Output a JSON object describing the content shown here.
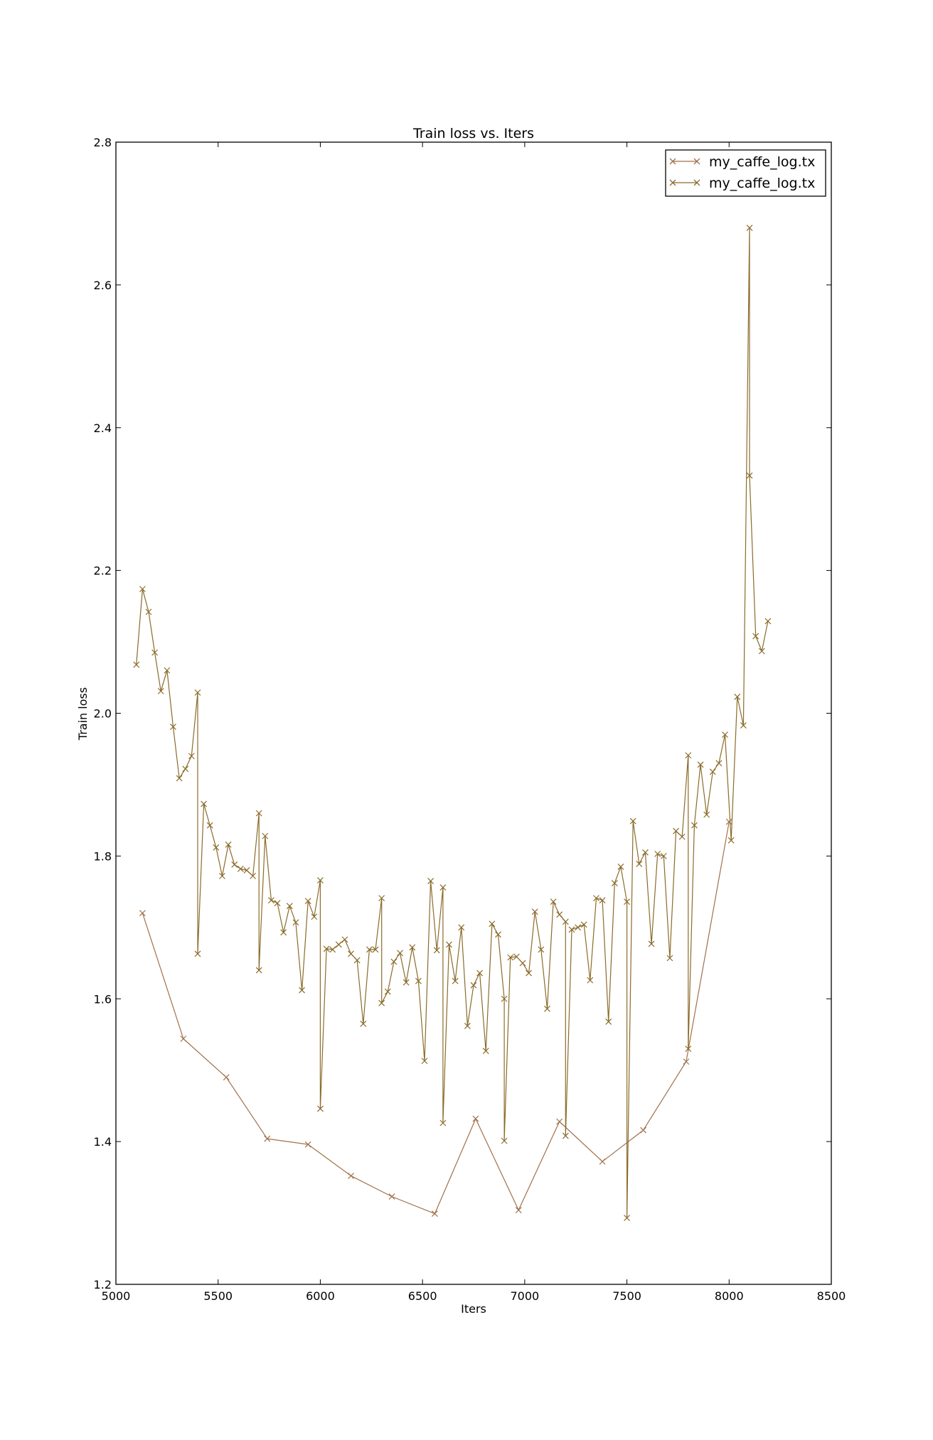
{
  "chart_data": {
    "type": "line",
    "title": "Train loss  vs. Iters",
    "xlabel": "Iters",
    "ylabel": "Train loss",
    "xlim": [
      5000,
      8500
    ],
    "ylim": [
      1.2,
      2.8
    ],
    "x_ticks": [
      5000,
      5500,
      6000,
      6500,
      7000,
      7500,
      8000,
      8500
    ],
    "x_tick_labels": [
      "5000",
      "5500",
      "6000",
      "6500",
      "7000",
      "7500",
      "8000",
      "8500"
    ],
    "y_ticks": [
      1.2,
      1.4,
      1.6,
      1.8,
      2.0,
      2.2,
      2.4,
      2.6,
      2.8
    ],
    "y_tick_labels": [
      "1.2",
      "1.4",
      "1.6",
      "1.8",
      "2.0",
      "2.2",
      "2.4",
      "2.6",
      "2.8"
    ],
    "grid": false,
    "legend_position": "top-right",
    "marker": "x",
    "series": [
      {
        "name": "my_caffe_log.tx",
        "color": "#a0714b",
        "x": [
          5130,
          5330,
          5540,
          5740,
          5940,
          6150,
          6350,
          6560,
          6760,
          6970,
          7170,
          7380,
          7580,
          7790,
          8000
        ],
        "y": [
          1.72,
          1.544,
          1.49,
          1.404,
          1.396,
          1.352,
          1.323,
          1.299,
          1.432,
          1.304,
          1.428,
          1.372,
          1.416,
          1.512,
          1.848
        ]
      },
      {
        "name": "my_caffe_log.tx",
        "color": "#8b6b2a",
        "x": [
          5100,
          5130,
          5160,
          5190,
          5220,
          5250,
          5280,
          5310,
          5340,
          5370,
          5400,
          5400,
          5430,
          5460,
          5490,
          5520,
          5550,
          5580,
          5610,
          5640,
          5670,
          5700,
          5700,
          5730,
          5760,
          5790,
          5820,
          5850,
          5880,
          5910,
          5940,
          5970,
          6000,
          6000,
          6030,
          6060,
          6090,
          6120,
          6150,
          6180,
          6210,
          6240,
          6270,
          6300,
          6300,
          6330,
          6360,
          6390,
          6420,
          6450,
          6480,
          6510,
          6540,
          6570,
          6600,
          6600,
          6630,
          6660,
          6690,
          6720,
          6750,
          6780,
          6810,
          6840,
          6870,
          6900,
          6900,
          6930,
          6960,
          6990,
          7020,
          7050,
          7080,
          7110,
          7140,
          7170,
          7200,
          7200,
          7230,
          7260,
          7290,
          7320,
          7350,
          7380,
          7410,
          7440,
          7470,
          7500,
          7500,
          7530,
          7560,
          7590,
          7620,
          7650,
          7680,
          7710,
          7740,
          7770,
          7800,
          7800,
          7830,
          7860,
          7890,
          7920,
          7950,
          7980,
          8010,
          8040,
          8070,
          8100,
          8100,
          8130,
          8160,
          8190
        ],
        "y": [
          2.068,
          2.174,
          2.142,
          2.085,
          2.031,
          2.06,
          1.981,
          1.909,
          1.922,
          1.94,
          2.029,
          1.663,
          1.873,
          1.843,
          1.812,
          1.772,
          1.816,
          1.788,
          1.782,
          1.78,
          1.772,
          1.86,
          1.64,
          1.828,
          1.738,
          1.734,
          1.693,
          1.73,
          1.707,
          1.612,
          1.737,
          1.715,
          1.766,
          1.446,
          1.67,
          1.669,
          1.676,
          1.683,
          1.663,
          1.654,
          1.565,
          1.669,
          1.669,
          1.741,
          1.594,
          1.61,
          1.652,
          1.664,
          1.623,
          1.672,
          1.625,
          1.513,
          1.765,
          1.668,
          1.756,
          1.426,
          1.676,
          1.625,
          1.7,
          1.562,
          1.619,
          1.636,
          1.527,
          1.705,
          1.69,
          1.6,
          1.401,
          1.658,
          1.659,
          1.65,
          1.636,
          1.722,
          1.669,
          1.586,
          1.736,
          1.718,
          1.708,
          1.408,
          1.697,
          1.7,
          1.704,
          1.626,
          1.741,
          1.738,
          1.568,
          1.762,
          1.785,
          1.736,
          1.293,
          1.849,
          1.789,
          1.805,
          1.677,
          1.803,
          1.8,
          1.657,
          1.835,
          1.827,
          1.941,
          1.53,
          1.843,
          1.928,
          1.858,
          1.918,
          1.93,
          1.97,
          1.822,
          2.023,
          1.983,
          2.68,
          2.333,
          2.108,
          2.087,
          2.129
        ]
      }
    ]
  }
}
